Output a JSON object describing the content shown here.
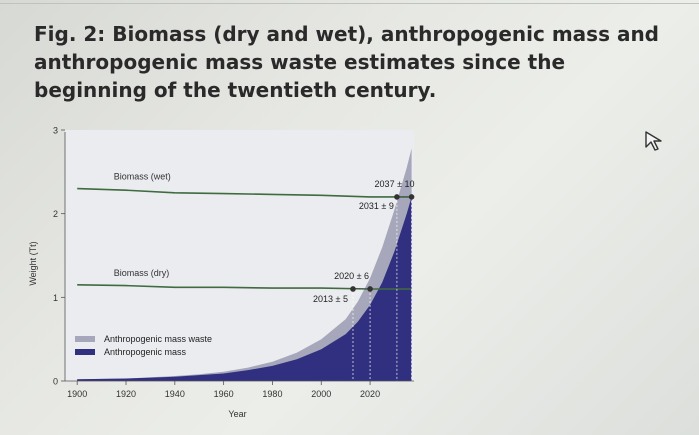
{
  "figure": {
    "title": "Fig. 2: Biomass (dry and wet), anthropogenic mass and anthropogenic mass waste estimates since the beginning of the twentieth century."
  },
  "chart_data": {
    "type": "area",
    "xlabel": "Year",
    "ylabel": "Weight (Tt)",
    "xlim": [
      1895,
      2038
    ],
    "ylim": [
      0,
      3
    ],
    "x_ticks": [
      1900,
      1920,
      1940,
      1960,
      1980,
      2000,
      2020
    ],
    "y_ticks": [
      0,
      1,
      2,
      3
    ],
    "legend_position": "lower-left",
    "legend": [
      {
        "label": "Anthropogenic mass waste",
        "color": "#a7a7bb"
      },
      {
        "label": "Anthropogenic mass",
        "color": "#302f80"
      }
    ],
    "series": [
      {
        "name": "Anthropogenic mass",
        "color": "#302f80",
        "x": [
          1900,
          1920,
          1940,
          1950,
          1960,
          1970,
          1980,
          1990,
          2000,
          2010,
          2015,
          2020,
          2025,
          2030,
          2035,
          2037
        ],
        "y": [
          0.02,
          0.03,
          0.05,
          0.07,
          0.09,
          0.13,
          0.18,
          0.26,
          0.38,
          0.56,
          0.71,
          0.91,
          1.18,
          1.55,
          2.0,
          2.2
        ]
      },
      {
        "name": "Anthropogenic mass waste",
        "color": "#a7a7bb",
        "x": [
          1900,
          1920,
          1940,
          1950,
          1960,
          1970,
          1980,
          1990,
          2000,
          2010,
          2015,
          2020,
          2025,
          2030,
          2035,
          2037
        ],
        "y": [
          0.02,
          0.03,
          0.06,
          0.08,
          0.11,
          0.16,
          0.23,
          0.34,
          0.5,
          0.74,
          0.95,
          1.23,
          1.6,
          2.05,
          2.55,
          2.78
        ]
      },
      {
        "name": "Biomass (wet)",
        "color": "#3f6b3f",
        "x": [
          1900,
          1920,
          1940,
          1960,
          1980,
          2000,
          2020,
          2037
        ],
        "y": [
          2.3,
          2.28,
          2.25,
          2.24,
          2.23,
          2.22,
          2.2,
          2.2
        ]
      },
      {
        "name": "Biomass (dry)",
        "color": "#3f6b3f",
        "x": [
          1900,
          1920,
          1940,
          1960,
          1980,
          2000,
          2020,
          2037
        ],
        "y": [
          1.15,
          1.14,
          1.12,
          1.12,
          1.11,
          1.11,
          1.1,
          1.1
        ]
      }
    ],
    "annotations": [
      {
        "text": "2037 ± 10",
        "x": 2037,
        "y": 2.2
      },
      {
        "text": "2031 ± 9",
        "x": 2031,
        "y": 2.2
      },
      {
        "text": "2020 ± 6",
        "x": 2020,
        "y": 1.1
      },
      {
        "text": "2013 ± 5",
        "x": 2013,
        "y": 1.1
      }
    ],
    "crossover_points": [
      {
        "year": 2031,
        "value": 2.2
      },
      {
        "year": 2037,
        "value": 2.2
      },
      {
        "year": 2013,
        "value": 1.1
      },
      {
        "year": 2020,
        "value": 1.1
      }
    ]
  }
}
